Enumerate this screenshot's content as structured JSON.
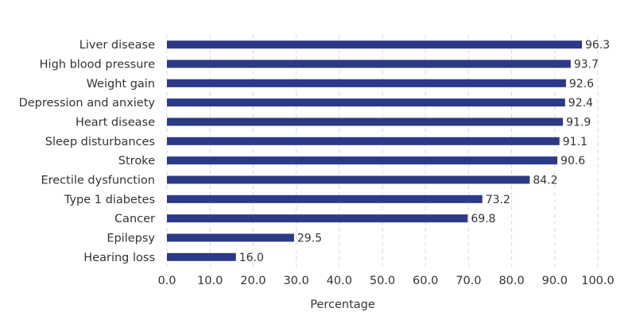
{
  "chart_data": {
    "type": "bar",
    "orientation": "horizontal",
    "categories": [
      "Liver disease",
      "High blood pressure",
      "Weight gain",
      "Depression and anxiety",
      "Heart disease",
      "Sleep disturbances",
      "Stroke",
      "Erectile dysfunction",
      "Type 1 diabetes",
      "Cancer",
      "Epilepsy",
      "Hearing loss"
    ],
    "values": [
      96.3,
      93.7,
      92.6,
      92.4,
      91.9,
      91.1,
      90.6,
      84.2,
      73.2,
      69.8,
      29.5,
      16.0
    ],
    "value_labels": [
      "96.3",
      "93.7",
      "92.6",
      "92.4",
      "91.9",
      "91.1",
      "90.6",
      "84.2",
      "73.2",
      "69.8",
      "29.5",
      "16.0"
    ],
    "xlabel": "Percentage",
    "ylabel": "",
    "xlim": [
      0,
      100
    ],
    "xticks": [
      "0.0",
      "10.0",
      "20.0",
      "30.0",
      "40.0",
      "50.0",
      "60.0",
      "70.0",
      "80.0",
      "90.0",
      "100.0"
    ],
    "bar_color": "#2b3a87",
    "grid": "vertical-dashed",
    "legend": "none"
  }
}
